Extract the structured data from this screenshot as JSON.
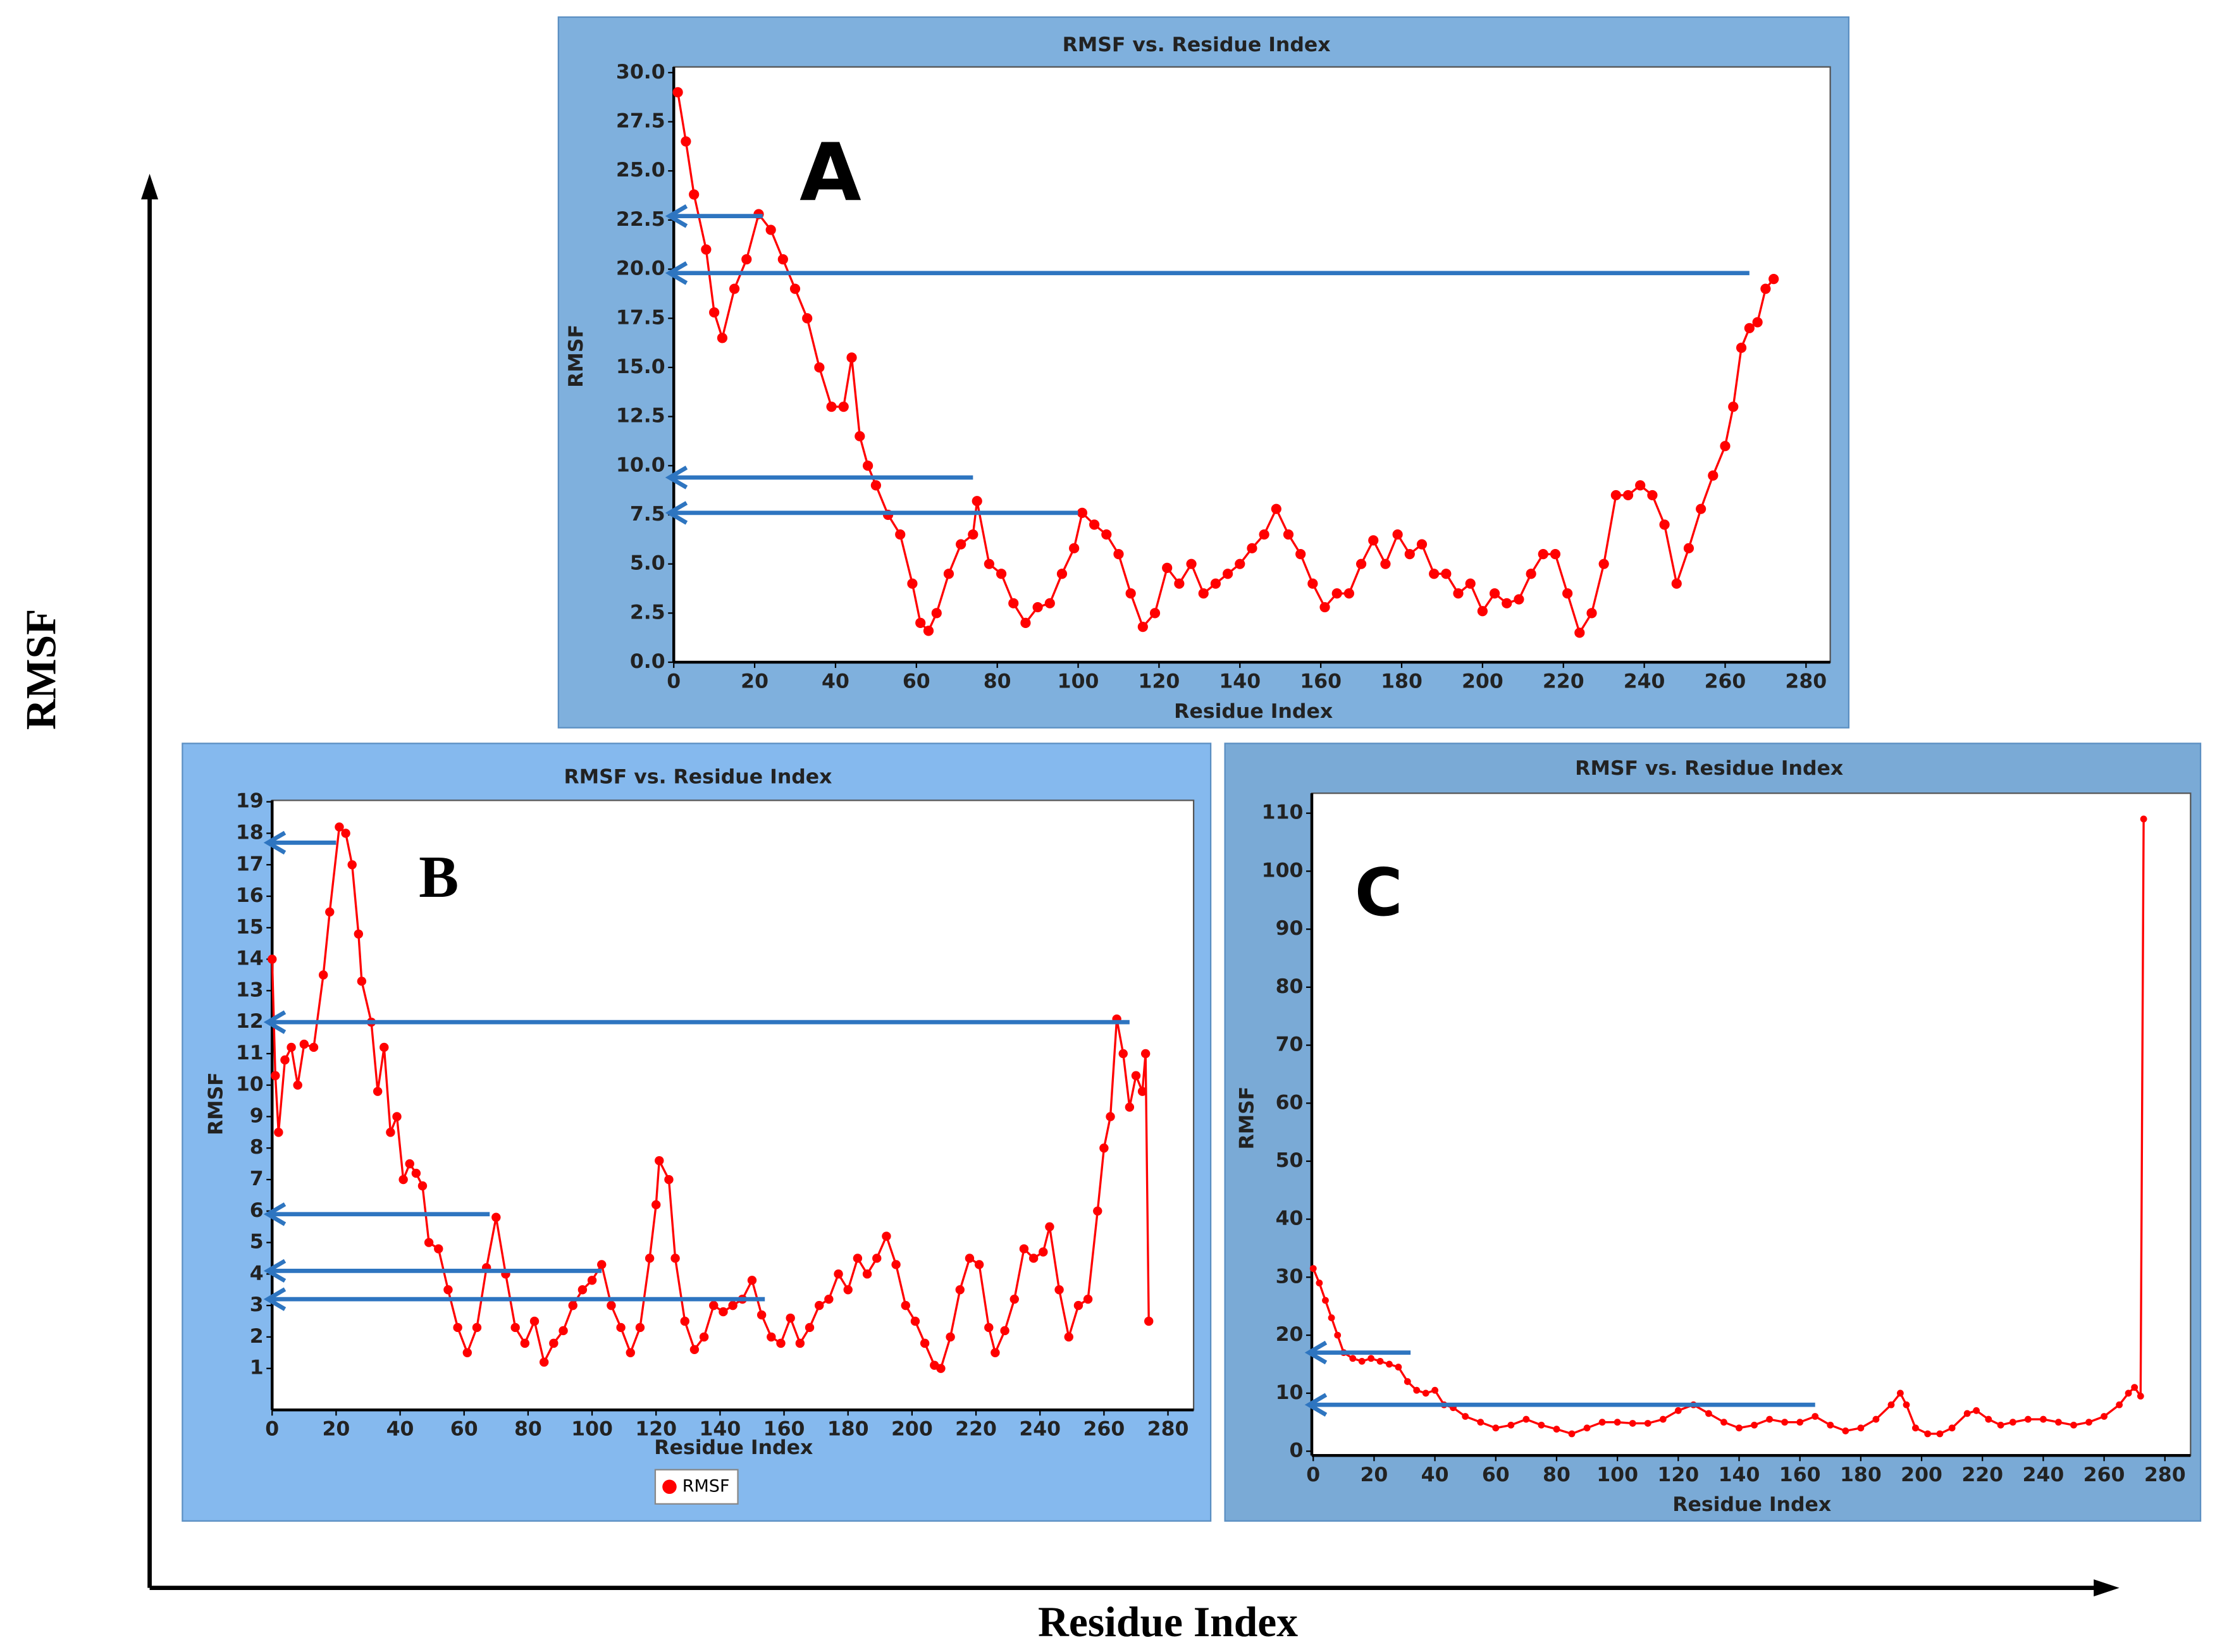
{
  "figure": {
    "y_label": "RMSF",
    "x_label": "Residue Index"
  },
  "chart_data": [
    {
      "type": "line",
      "panel_label": "A",
      "title": "RMSF vs. Residue Index",
      "xlabel": "Residue Index",
      "ylabel": "RMSF",
      "x": [
        1,
        3,
        5,
        8,
        10,
        12,
        15,
        18,
        21,
        24,
        27,
        30,
        33,
        36,
        39,
        42,
        44,
        46,
        48,
        50,
        53,
        56,
        59,
        61,
        63,
        65,
        68,
        71,
        74,
        75,
        78,
        81,
        84,
        87,
        90,
        93,
        96,
        99,
        101,
        104,
        107,
        110,
        113,
        116,
        119,
        122,
        125,
        128,
        131,
        134,
        137,
        140,
        143,
        146,
        149,
        152,
        155,
        158,
        161,
        164,
        167,
        170,
        173,
        176,
        179,
        182,
        185,
        188,
        191,
        194,
        197,
        200,
        203,
        206,
        209,
        212,
        215,
        218,
        221,
        224,
        227,
        230,
        233,
        236,
        239,
        242,
        245,
        248,
        251,
        254,
        257,
        260,
        262,
        264,
        266,
        268,
        270,
        272
      ],
      "series": [
        {
          "color": "#ff0000",
          "values": [
            29,
            26.5,
            23.8,
            21,
            17.8,
            16.5,
            19,
            20.5,
            22.8,
            22,
            20.5,
            19,
            17.5,
            15,
            13,
            13,
            15.5,
            11.5,
            10,
            9,
            7.5,
            6.5,
            4,
            2,
            1.6,
            2.5,
            4.5,
            6,
            6.5,
            8.2,
            5,
            4.5,
            3,
            2,
            2.8,
            3,
            4.5,
            5.8,
            7.6,
            7,
            6.5,
            5.5,
            3.5,
            1.8,
            2.5,
            4.8,
            4,
            5,
            3.5,
            4,
            4.5,
            5,
            5.8,
            6.5,
            7.8,
            6.5,
            5.5,
            4,
            2.8,
            3.5,
            3.5,
            5,
            6.2,
            5,
            6.5,
            5.5,
            6,
            4.5,
            4.5,
            3.5,
            4,
            2.6,
            3.5,
            3,
            3.2,
            4.5,
            5.5,
            5.5,
            3.5,
            1.5,
            2.5,
            5,
            8.5,
            8.5,
            9,
            8.5,
            7,
            4,
            5.8,
            7.8,
            9.5,
            11,
            13,
            16,
            17,
            17.3,
            19,
            19.5
          ]
        }
      ],
      "xlim": [
        0,
        280
      ],
      "ylim": [
        0,
        30
      ],
      "xticks": [
        0,
        20,
        40,
        60,
        80,
        100,
        120,
        140,
        160,
        180,
        200,
        220,
        240,
        260,
        280
      ],
      "yticks": [
        {
          "value": 0,
          "label": "0.0"
        },
        {
          "value": 2.5,
          "label": "2.5"
        },
        {
          "value": 5,
          "label": "5.0"
        },
        {
          "value": 7.5,
          "label": "7.5"
        },
        {
          "value": 10,
          "label": "10.0"
        },
        {
          "value": 12.5,
          "label": "12.5"
        },
        {
          "value": 15,
          "label": "15.0"
        },
        {
          "value": 17.5,
          "label": "17.5"
        },
        {
          "value": 20,
          "label": "20.0"
        },
        {
          "value": 22.5,
          "label": "22.5"
        },
        {
          "value": 25,
          "label": "25.0"
        },
        {
          "value": 27.5,
          "label": "27.5"
        },
        {
          "value": 30,
          "label": "30.0"
        }
      ],
      "arrows": [
        {
          "y": 22.7,
          "x": 22
        },
        {
          "y": 19.8,
          "x": 266
        },
        {
          "y": 9.4,
          "x": 74
        },
        {
          "y": 7.6,
          "x": 100
        }
      ],
      "arrow_color": "#2e75c0",
      "background": "#7fb0dd"
    },
    {
      "type": "line",
      "panel_label": "B",
      "title": "RMSF vs. Residue Index",
      "xlabel": "Residue Index",
      "ylabel": "RMSF",
      "x": [
        0,
        1,
        2,
        4,
        6,
        8,
        10,
        13,
        16,
        18,
        21,
        23,
        25,
        27,
        28,
        31,
        33,
        35,
        37,
        39,
        41,
        43,
        45,
        47,
        49,
        52,
        55,
        58,
        61,
        64,
        67,
        70,
        73,
        76,
        79,
        82,
        85,
        88,
        91,
        94,
        97,
        100,
        103,
        106,
        109,
        112,
        115,
        118,
        120,
        121,
        124,
        126,
        129,
        132,
        135,
        138,
        141,
        144,
        147,
        150,
        153,
        156,
        159,
        162,
        165,
        168,
        171,
        174,
        177,
        180,
        183,
        186,
        189,
        192,
        195,
        198,
        201,
        204,
        207,
        209,
        212,
        215,
        218,
        221,
        224,
        226,
        229,
        232,
        235,
        238,
        241,
        243,
        246,
        249,
        252,
        255,
        258,
        260,
        262,
        264,
        266,
        268,
        270,
        272,
        273,
        274
      ],
      "series": [
        {
          "name": "RMSF",
          "color": "#ff0000",
          "values": [
            14,
            10.3,
            8.5,
            10.8,
            11.2,
            10,
            11.3,
            11.2,
            13.5,
            15.5,
            18.2,
            18,
            17,
            14.8,
            13.3,
            12,
            9.8,
            11.2,
            8.5,
            9,
            7,
            7.5,
            7.2,
            6.8,
            5,
            4.8,
            3.5,
            2.3,
            1.5,
            2.3,
            4.2,
            5.8,
            4,
            2.3,
            1.8,
            2.5,
            1.2,
            1.8,
            2.2,
            3,
            3.5,
            3.8,
            4.3,
            3,
            2.3,
            1.5,
            2.3,
            4.5,
            6.2,
            7.6,
            7,
            4.5,
            2.5,
            1.6,
            2,
            3,
            2.8,
            3,
            3.2,
            3.8,
            2.7,
            2,
            1.8,
            2.6,
            1.8,
            2.3,
            3,
            3.2,
            4,
            3.5,
            4.5,
            4,
            4.5,
            5.2,
            4.3,
            3,
            2.5,
            1.8,
            1.1,
            1,
            2,
            3.5,
            4.5,
            4.3,
            2.3,
            1.5,
            2.2,
            3.2,
            4.8,
            4.5,
            4.7,
            5.5,
            3.5,
            2,
            3,
            3.2,
            6,
            8,
            9,
            12.1,
            11,
            9.3,
            10.3,
            9.8,
            11,
            2.5
          ]
        }
      ],
      "xlim": [
        0,
        280
      ],
      "ylim": [
        0,
        19
      ],
      "xticks": [
        0,
        20,
        40,
        60,
        80,
        100,
        120,
        140,
        160,
        180,
        200,
        220,
        240,
        260,
        280
      ],
      "yticks": [
        1,
        2,
        3,
        4,
        5,
        6,
        7,
        8,
        9,
        10,
        11,
        12,
        13,
        14,
        15,
        16,
        17,
        18,
        19
      ],
      "arrows": [
        {
          "y": 17.7,
          "x": 20
        },
        {
          "y": 12,
          "x": 268
        },
        {
          "y": 5.9,
          "x": 68
        },
        {
          "y": 4.1,
          "x": 103
        },
        {
          "y": 3.2,
          "x": 154
        }
      ],
      "arrow_color": "#2e75c0",
      "background": "#85b9ee",
      "legend": "bottom"
    },
    {
      "type": "line",
      "panel_label": "C",
      "title": "RMSF vs. Residue Index",
      "xlabel": "Residue Index",
      "ylabel": "RMSF",
      "x": [
        0,
        2,
        4,
        6,
        8,
        10,
        13,
        16,
        19,
        22,
        25,
        28,
        31,
        34,
        37,
        40,
        43,
        46,
        50,
        55,
        60,
        65,
        70,
        75,
        80,
        85,
        90,
        95,
        100,
        105,
        110,
        115,
        120,
        125,
        130,
        135,
        140,
        145,
        150,
        155,
        160,
        165,
        170,
        175,
        180,
        185,
        190,
        193,
        195,
        198,
        202,
        206,
        210,
        215,
        218,
        222,
        226,
        230,
        235,
        240,
        245,
        250,
        255,
        260,
        265,
        268,
        270,
        272,
        273
      ],
      "series": [
        {
          "color": "#ff0000",
          "values": [
            31.5,
            29,
            26,
            23,
            20,
            17,
            16,
            15.5,
            16,
            15.5,
            15,
            14.5,
            12,
            10.5,
            10,
            10.5,
            8,
            7.5,
            6,
            5,
            4,
            4.5,
            5.5,
            4.5,
            3.8,
            3,
            4,
            5,
            5,
            4.8,
            4.8,
            5.5,
            7,
            8,
            6.5,
            5,
            4,
            4.5,
            5.5,
            5,
            5,
            6,
            4.5,
            3.5,
            4,
            5.5,
            8,
            10,
            8,
            4,
            3,
            3,
            4,
            6.5,
            7,
            5.5,
            4.5,
            5,
            5.5,
            5.5,
            5,
            4.5,
            5,
            6,
            8,
            10,
            11,
            9.5,
            109
          ]
        }
      ],
      "xlim": [
        0,
        280
      ],
      "ylim": [
        0,
        110
      ],
      "xticks": [
        0,
        20,
        40,
        60,
        80,
        100,
        120,
        140,
        160,
        180,
        200,
        220,
        240,
        260,
        280
      ],
      "yticks": [
        0,
        10,
        20,
        30,
        40,
        50,
        60,
        70,
        80,
        90,
        100,
        110
      ],
      "arrows": [
        {
          "y": 17,
          "x": 32
        },
        {
          "y": 8,
          "x": 165
        }
      ],
      "arrow_color": "#2e75c0",
      "background": "#7aaad6"
    }
  ]
}
